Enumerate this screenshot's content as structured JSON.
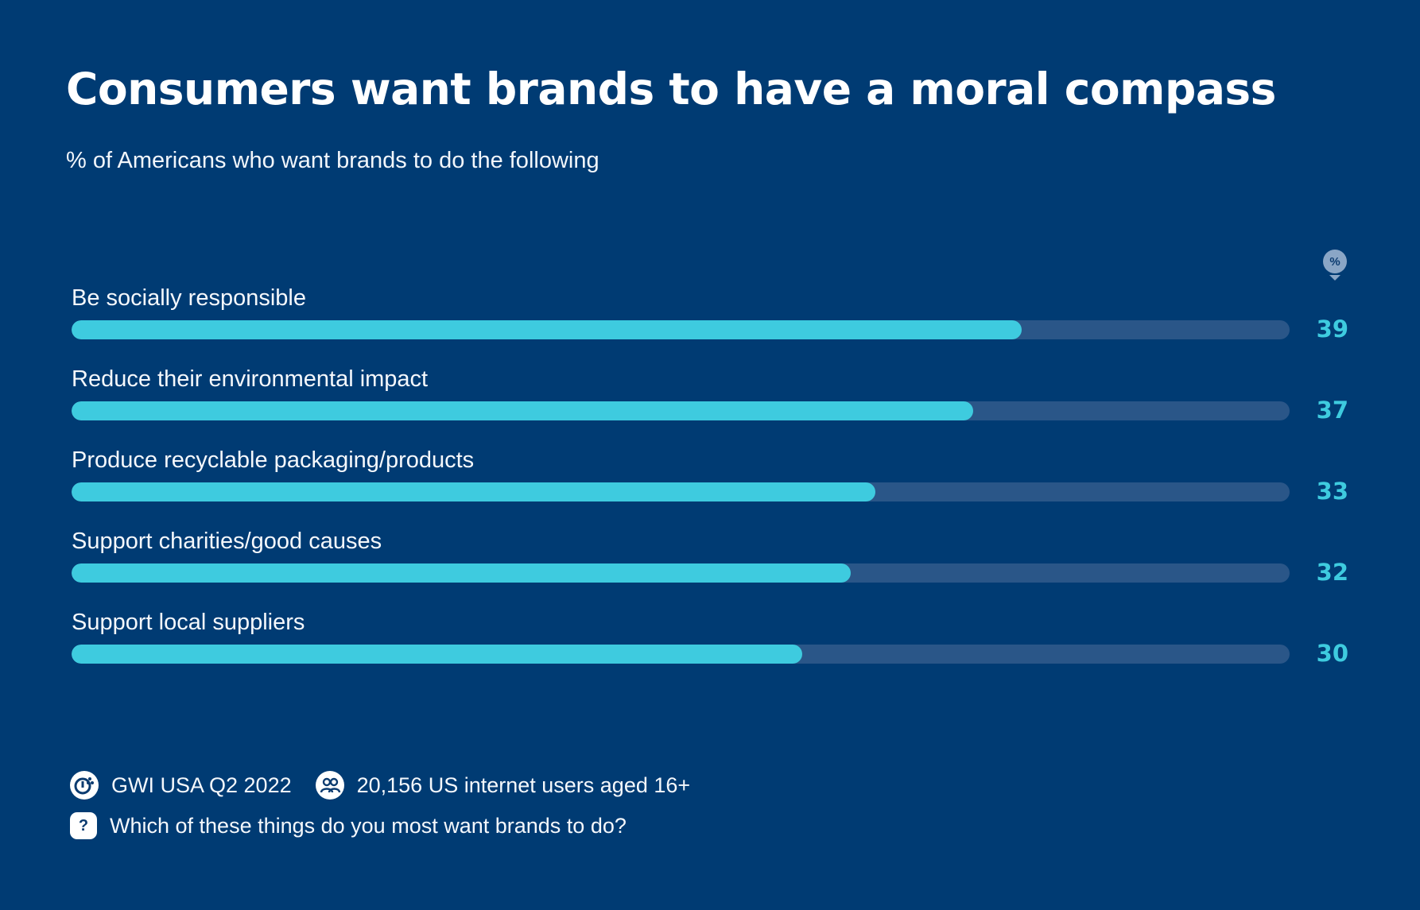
{
  "header": {
    "title": "Consumers want brands to have a moral compass",
    "subtitle": "% of Americans who want brands to do the following"
  },
  "badge": {
    "label": "%"
  },
  "chart_data": {
    "type": "bar",
    "orientation": "horizontal",
    "categories": [
      "Be socially responsible",
      "Reduce their environmental impact",
      "Produce recyclable packaging/products",
      "Support charities/good causes",
      "Support local suppliers"
    ],
    "values": [
      39,
      37,
      33,
      32,
      30
    ],
    "xlim": [
      0,
      50
    ],
    "grid": false,
    "colors": {
      "bar": "#3ecbdf",
      "track": "#2a5688",
      "value_text": "#3ecbdf"
    }
  },
  "footer": {
    "source": "GWI USA Q2 2022",
    "sample": "20,156 US internet users aged 16+",
    "question": "Which of these things do you most want brands to do?",
    "question_icon_label": "?"
  }
}
